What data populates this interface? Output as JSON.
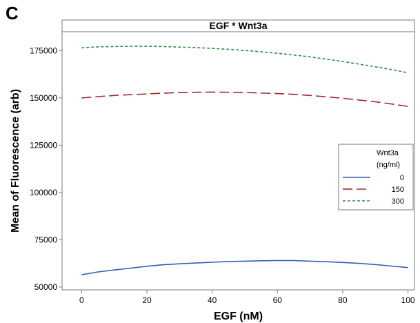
{
  "panel_label": "C",
  "chart_data": {
    "type": "line",
    "title": "EGF * Wnt3a",
    "xlabel": "EGF (nM)",
    "ylabel": "Mean of Fluorescence (arb)",
    "xlim": [
      -6,
      102
    ],
    "ylim": [
      48500,
      185000
    ],
    "xticks": [
      0,
      20,
      40,
      60,
      80,
      100
    ],
    "xtick_labels": [
      "0",
      "20",
      "40",
      "60",
      "80",
      "100"
    ],
    "yticks": [
      50000,
      75000,
      100000,
      125000,
      150000,
      175000
    ],
    "ytick_labels": [
      "50000",
      "75000",
      "100000",
      "125000",
      "150000",
      "175000"
    ],
    "grid": false,
    "legend": {
      "title_lines": [
        "Wnt3a",
        "(ng/ml)"
      ],
      "placement": "right",
      "entries": [
        "0",
        "150",
        "300"
      ]
    },
    "series": [
      {
        "name": "0",
        "color": "#2f5fb3",
        "dash": "solid",
        "x": [
          0,
          5,
          10,
          15,
          20,
          25,
          30,
          35,
          40,
          45,
          50,
          55,
          60,
          65,
          70,
          75,
          80,
          85,
          90,
          95,
          100
        ],
        "y": [
          56500,
          58000,
          59000,
          60000,
          61000,
          61800,
          62300,
          62700,
          63100,
          63500,
          63700,
          63900,
          64000,
          64000,
          63700,
          63400,
          63000,
          62500,
          61900,
          61100,
          60300
        ]
      },
      {
        "name": "150",
        "color": "#a3262a",
        "dash": "long",
        "x": [
          0,
          5,
          10,
          15,
          20,
          25,
          30,
          35,
          40,
          45,
          50,
          55,
          60,
          65,
          70,
          75,
          80,
          85,
          90,
          95,
          100
        ],
        "y": [
          150000,
          150700,
          151300,
          151700,
          152100,
          152500,
          152800,
          153000,
          153100,
          153000,
          152900,
          152600,
          152300,
          151900,
          151300,
          150600,
          149800,
          148900,
          148000,
          146800,
          145500
        ]
      },
      {
        "name": "300",
        "color": "#2e8b3d",
        "dash": "short",
        "x": [
          0,
          5,
          10,
          15,
          20,
          25,
          30,
          35,
          40,
          45,
          50,
          55,
          60,
          65,
          70,
          75,
          80,
          85,
          90,
          95,
          100
        ],
        "y": [
          176500,
          177000,
          177200,
          177300,
          177300,
          177200,
          176900,
          176600,
          176200,
          175700,
          175100,
          174400,
          173600,
          172700,
          171700,
          170500,
          169300,
          167900,
          166500,
          165000,
          163300
        ]
      }
    ]
  }
}
